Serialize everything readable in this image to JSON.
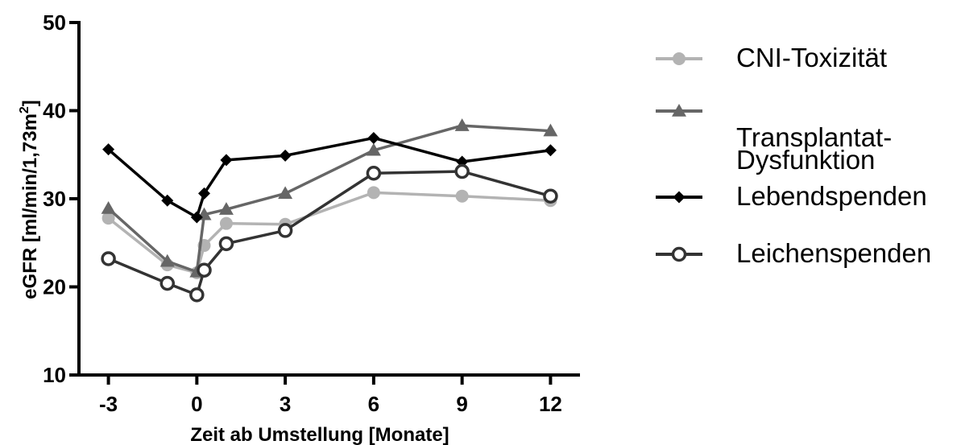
{
  "chart_data": {
    "type": "line",
    "title": "",
    "xlabel": "Zeit ab Umstellung [Monate]",
    "ylabel_main": "eGFR [ml/min/1,73m",
    "ylabel_sup": "2",
    "ylabel_end": "]",
    "xlim": [
      -4,
      13
    ],
    "ylim": [
      10,
      50
    ],
    "xticks": [
      -3,
      0,
      3,
      6,
      9,
      12
    ],
    "xtick_labels": [
      "-3",
      "0",
      "3",
      "6",
      "9",
      "12"
    ],
    "yticks": [
      10,
      20,
      30,
      40,
      50
    ],
    "ytick_labels": [
      "10",
      "20",
      "30",
      "40",
      "50"
    ],
    "grid": false,
    "legend_position": "right",
    "series": [
      {
        "name": "CNI-Toxizität",
        "color": "#b3b3b3",
        "marker": "circle-filled",
        "x": [
          -3,
          -1,
          0,
          0.25,
          1,
          3,
          6,
          9,
          12
        ],
        "y": [
          27.8,
          22.5,
          21.6,
          24.7,
          27.2,
          27.1,
          30.7,
          30.3,
          29.8
        ]
      },
      {
        "name": "Transplantat-Dysfunktion",
        "name_lines": [
          "Transplantat-",
          "Dysfunktion"
        ],
        "color": "#666666",
        "marker": "triangle",
        "x": [
          -3,
          -1,
          0,
          0.25,
          1,
          3,
          6,
          9,
          12
        ],
        "y": [
          28.9,
          22.9,
          21.7,
          28.2,
          28.8,
          30.6,
          35.5,
          38.3,
          37.7
        ]
      },
      {
        "name": "Lebendspenden",
        "color": "#000000",
        "marker": "diamond",
        "x": [
          -3,
          -1,
          0,
          0.25,
          1,
          3,
          6,
          9,
          12
        ],
        "y": [
          35.6,
          29.8,
          27.9,
          30.6,
          34.4,
          34.9,
          36.9,
          34.2,
          35.5
        ]
      },
      {
        "name": "Leichenspenden",
        "color": "#333333",
        "marker": "circle-open",
        "x": [
          -3,
          -1,
          0,
          0.25,
          1,
          3,
          6,
          9,
          12
        ],
        "y": [
          23.2,
          20.4,
          19.1,
          21.9,
          24.9,
          26.4,
          32.9,
          33.1,
          30.3
        ]
      }
    ]
  }
}
